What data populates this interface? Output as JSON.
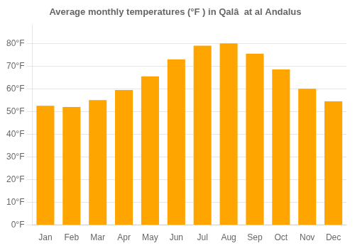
{
  "chart_data": {
    "type": "bar",
    "title": "Average monthly temperatures (°F ) in Qalâ  at al Andalus",
    "categories": [
      "Jan",
      "Feb",
      "Mar",
      "Apr",
      "May",
      "Jun",
      "Jul",
      "Aug",
      "Sep",
      "Oct",
      "Nov",
      "Dec"
    ],
    "values": [
      52.5,
      52,
      55,
      59.5,
      65.5,
      73,
      79,
      80,
      75.5,
      68.5,
      60,
      54.5
    ],
    "color": "#FFA500",
    "ylim": [
      0,
      88
    ],
    "yticks": [
      {
        "value": 0,
        "label": "0°F"
      },
      {
        "value": 10,
        "label": "10°F"
      },
      {
        "value": 20,
        "label": "20°F"
      },
      {
        "value": 30,
        "label": "30°F"
      },
      {
        "value": 40,
        "label": "40°F"
      },
      {
        "value": 50,
        "label": "50°F"
      },
      {
        "value": 60,
        "label": "60°F"
      },
      {
        "value": 70,
        "label": "70°F"
      },
      {
        "value": 80,
        "label": "80°F"
      }
    ],
    "grid": true
  }
}
